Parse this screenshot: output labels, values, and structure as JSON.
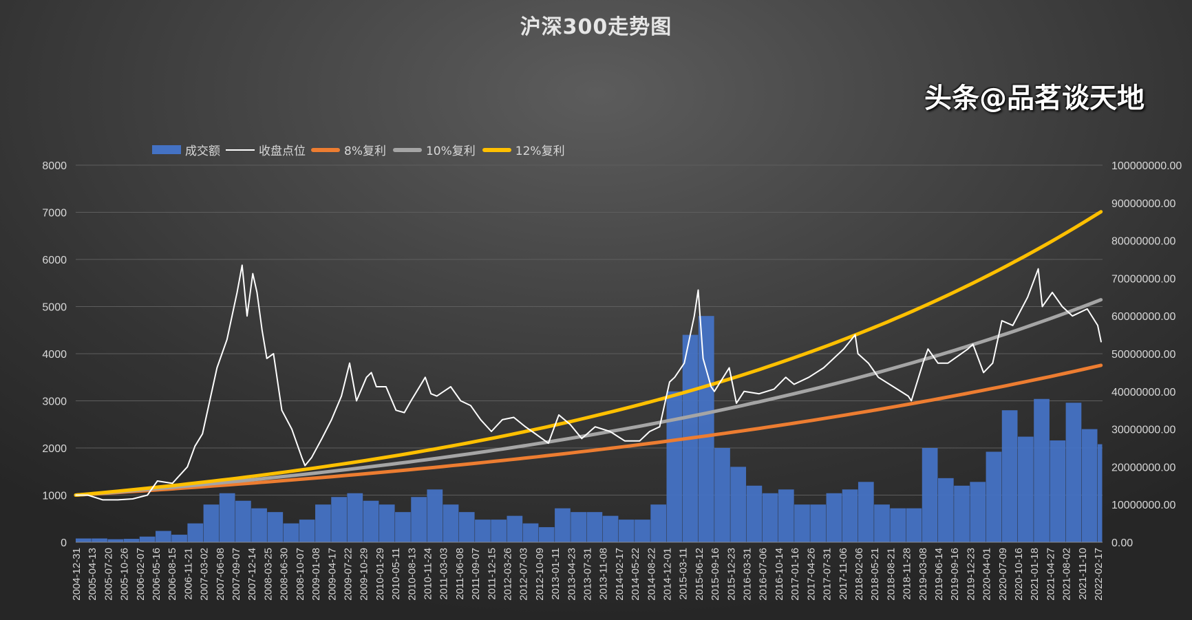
{
  "chart_data": {
    "type": "bar+line",
    "title": "沪深300走势图",
    "legend_position": "top-left",
    "grid": true,
    "y_left": {
      "ylim": [
        0,
        8000
      ],
      "ticks": [
        "0",
        "1000",
        "2000",
        "3000",
        "4000",
        "5000",
        "6000",
        "7000",
        "8000"
      ]
    },
    "y_right": {
      "ylim": [
        0,
        100000000
      ],
      "ticks": [
        "0.00",
        "10000000.00",
        "20000000.00",
        "30000000.00",
        "40000000.00",
        "50000000.00",
        "60000000.00",
        "70000000.00",
        "80000000.00",
        "90000000.00",
        "100000000.00"
      ]
    },
    "x_tick_labels": [
      "2004-12-31",
      "2005-04-13",
      "2005-07-20",
      "2005-10-26",
      "2006-02-07",
      "2006-05-16",
      "2006-08-15",
      "2006-11-21",
      "2007-03-02",
      "2007-06-08",
      "2007-09-07",
      "2007-12-14",
      "2008-03-25",
      "2008-06-30",
      "2008-10-07",
      "2009-01-08",
      "2009-04-17",
      "2009-07-22",
      "2009-10-29",
      "2010-01-29",
      "2010-05-11",
      "2010-08-13",
      "2010-11-24",
      "2011-03-03",
      "2011-06-08",
      "2011-09-07",
      "2011-12-15",
      "2012-03-26",
      "2012-07-03",
      "2012-10-09",
      "2013-01-11",
      "2013-04-23",
      "2013-07-31",
      "2013-11-08",
      "2014-02-17",
      "2014-05-22",
      "2014-08-22",
      "2014-12-01",
      "2015-03-11",
      "2015-06-12",
      "2015-09-16",
      "2015-12-23",
      "2016-03-31",
      "2016-07-06",
      "2016-10-14",
      "2017-01-16",
      "2017-04-26",
      "2017-07-31",
      "2017-11-06",
      "2018-02-06",
      "2018-05-21",
      "2018-08-21",
      "2018-11-28",
      "2019-03-08",
      "2019-06-14",
      "2019-09-16",
      "2019-12-23",
      "2020-04-01",
      "2020-07-09",
      "2020-10-16",
      "2021-01-18",
      "2021-04-27",
      "2021-08-02",
      "2021-11-10",
      "2022-02-17"
    ],
    "series": [
      {
        "name": "成交额",
        "type": "bar",
        "axis": "right",
        "color": "#4472c4",
        "values": [
          1000000,
          1000000,
          800000,
          900000,
          1500000,
          3000000,
          2000000,
          5000000,
          10000000,
          13000000,
          11000000,
          9000000,
          8000000,
          5000000,
          6000000,
          10000000,
          12000000,
          13000000,
          11000000,
          10000000,
          8000000,
          12000000,
          14000000,
          10000000,
          8000000,
          6000000,
          6000000,
          7000000,
          5000000,
          4000000,
          9000000,
          8000000,
          8000000,
          7000000,
          6000000,
          6000000,
          10000000,
          40000000,
          55000000,
          60000000,
          25000000,
          20000000,
          15000000,
          13000000,
          14000000,
          10000000,
          10000000,
          13000000,
          14000000,
          16000000,
          10000000,
          9000000,
          9000000,
          25000000,
          17000000,
          15000000,
          16000000,
          24000000,
          35000000,
          28000000,
          38000000,
          27000000,
          37000000,
          30000000,
          26000000
        ]
      },
      {
        "name": "收盘点位",
        "type": "line",
        "axis": "left",
        "color": "#ffffff",
        "points": [
          [
            "2004-12-31",
            1000
          ],
          [
            "2005-03-15",
            1000
          ],
          [
            "2005-06-15",
            900
          ],
          [
            "2005-09-15",
            900
          ],
          [
            "2005-12-15",
            920
          ],
          [
            "2006-03-15",
            1000
          ],
          [
            "2006-05-15",
            1300
          ],
          [
            "2006-08-15",
            1250
          ],
          [
            "2006-11-15",
            1600
          ],
          [
            "2006-12-31",
            2040
          ],
          [
            "2007-02-15",
            2300
          ],
          [
            "2007-05-15",
            3700
          ],
          [
            "2007-07-15",
            4300
          ],
          [
            "2007-09-15",
            5300
          ],
          [
            "2007-10-16",
            5877
          ],
          [
            "2007-11-15",
            4800
          ],
          [
            "2007-12-20",
            5700
          ],
          [
            "2008-01-15",
            5300
          ],
          [
            "2008-02-15",
            4500
          ],
          [
            "2008-03-15",
            3900
          ],
          [
            "2008-04-25",
            4000
          ],
          [
            "2008-06-15",
            2800
          ],
          [
            "2008-08-15",
            2400
          ],
          [
            "2008-10-15",
            1800
          ],
          [
            "2008-11-04",
            1627
          ],
          [
            "2008-12-15",
            1800
          ],
          [
            "2009-02-15",
            2200
          ],
          [
            "2009-04-15",
            2600
          ],
          [
            "2009-06-15",
            3100
          ],
          [
            "2009-08-04",
            3800
          ],
          [
            "2009-09-15",
            3000
          ],
          [
            "2009-11-15",
            3500
          ],
          [
            "2009-12-15",
            3600
          ],
          [
            "2010-01-15",
            3300
          ],
          [
            "2010-03-15",
            3300
          ],
          [
            "2010-05-15",
            2800
          ],
          [
            "2010-07-05",
            2750
          ],
          [
            "2010-08-15",
            3000
          ],
          [
            "2010-11-10",
            3500
          ],
          [
            "2010-12-15",
            3150
          ],
          [
            "2011-01-20",
            3100
          ],
          [
            "2011-04-15",
            3300
          ],
          [
            "2011-06-15",
            3000
          ],
          [
            "2011-08-15",
            2900
          ],
          [
            "2011-10-15",
            2600
          ],
          [
            "2011-12-20",
            2350
          ],
          [
            "2012-02-25",
            2600
          ],
          [
            "2012-05-05",
            2650
          ],
          [
            "2012-07-15",
            2450
          ],
          [
            "2012-09-15",
            2300
          ],
          [
            "2012-12-03",
            2100
          ],
          [
            "2013-02-05",
            2700
          ],
          [
            "2013-04-15",
            2500
          ],
          [
            "2013-06-25",
            2200
          ],
          [
            "2013-09-15",
            2450
          ],
          [
            "2013-12-15",
            2350
          ],
          [
            "2014-03-15",
            2150
          ],
          [
            "2014-06-15",
            2150
          ],
          [
            "2014-08-15",
            2350
          ],
          [
            "2014-10-15",
            2450
          ],
          [
            "2014-12-15",
            3400
          ],
          [
            "2015-01-15",
            3500
          ],
          [
            "2015-03-15",
            3800
          ],
          [
            "2015-05-15",
            4800
          ],
          [
            "2015-06-08",
            5350
          ],
          [
            "2015-07-08",
            3900
          ],
          [
            "2015-08-26",
            3300
          ],
          [
            "2015-09-15",
            3200
          ],
          [
            "2015-12-15",
            3700
          ],
          [
            "2016-01-28",
            2950
          ],
          [
            "2016-03-15",
            3200
          ],
          [
            "2016-06-15",
            3150
          ],
          [
            "2016-09-15",
            3250
          ],
          [
            "2016-11-25",
            3500
          ],
          [
            "2017-01-15",
            3350
          ],
          [
            "2017-04-15",
            3500
          ],
          [
            "2017-07-15",
            3700
          ],
          [
            "2017-11-15",
            4100
          ],
          [
            "2018-01-24",
            4400
          ],
          [
            "2018-02-10",
            4000
          ],
          [
            "2018-04-15",
            3800
          ],
          [
            "2018-06-15",
            3500
          ],
          [
            "2018-09-15",
            3300
          ],
          [
            "2018-12-15",
            3100
          ],
          [
            "2019-01-03",
            3000
          ],
          [
            "2019-03-15",
            3800
          ],
          [
            "2019-04-15",
            4100
          ],
          [
            "2019-06-15",
            3800
          ],
          [
            "2019-08-15",
            3800
          ],
          [
            "2019-12-15",
            4100
          ],
          [
            "2020-01-15",
            4200
          ],
          [
            "2020-03-20",
            3600
          ],
          [
            "2020-05-15",
            3800
          ],
          [
            "2020-07-10",
            4700
          ],
          [
            "2020-09-15",
            4600
          ],
          [
            "2020-12-15",
            5200
          ],
          [
            "2021-02-18",
            5800
          ],
          [
            "2021-03-15",
            5000
          ],
          [
            "2021-05-15",
            5300
          ],
          [
            "2021-07-15",
            5000
          ],
          [
            "2021-09-15",
            4800
          ],
          [
            "2021-12-15",
            4950
          ],
          [
            "2022-02-17",
            4600
          ],
          [
            "2022-03-10",
            4250
          ]
        ]
      },
      {
        "name": "8%复利",
        "type": "line",
        "axis": "left",
        "color": "#ed7d31",
        "start_value": 1000,
        "annual_rate": 0.08
      },
      {
        "name": "10%复利",
        "type": "line",
        "axis": "left",
        "color": "#a5a5a5",
        "start_value": 1000,
        "annual_rate": 0.1
      },
      {
        "name": "12%复利",
        "type": "line",
        "axis": "left",
        "color": "#ffc000",
        "start_value": 1000,
        "annual_rate": 0.12
      }
    ]
  },
  "watermark": "头条@品茗谈天地"
}
